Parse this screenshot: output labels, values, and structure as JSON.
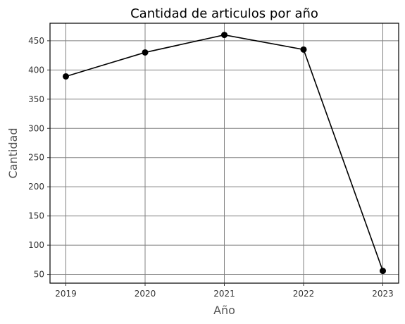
{
  "chart_data": {
    "type": "line",
    "title": "Cantidad de articulos por año",
    "xlabel": "Año",
    "ylabel": "Cantidad",
    "x": [
      2019,
      2020,
      2021,
      2022,
      2023
    ],
    "series": [
      {
        "values": [
          389,
          430,
          460,
          435,
          56
        ]
      }
    ],
    "xticks": [
      "2019",
      "2020",
      "2021",
      "2022",
      "2023"
    ],
    "yticks": [
      50,
      100,
      150,
      200,
      250,
      300,
      350,
      400,
      450
    ],
    "ylim": [
      35,
      480
    ],
    "grid": true,
    "colors": {
      "line": "#000000",
      "grid": "#808080"
    }
  }
}
